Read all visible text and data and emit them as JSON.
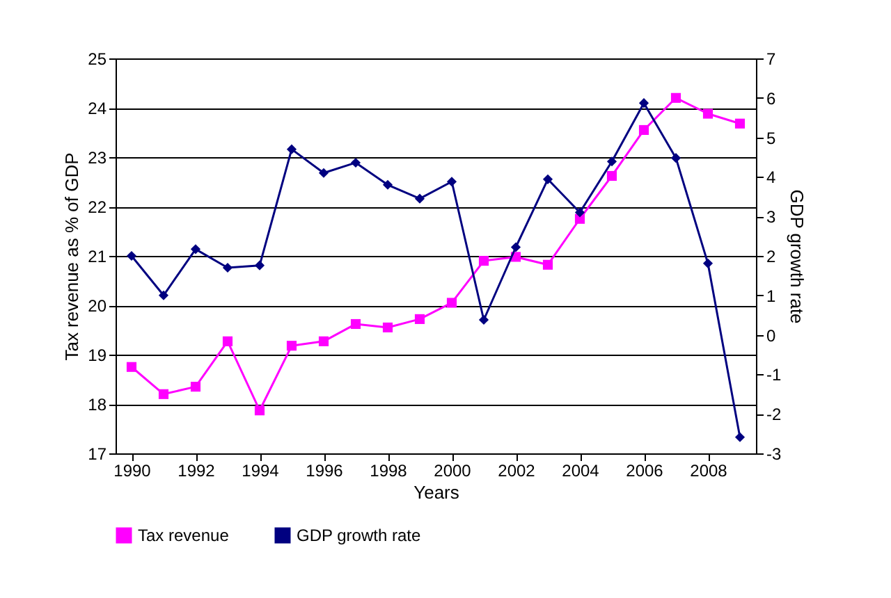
{
  "chart_data": {
    "type": "line",
    "xlabel": "Years",
    "ylabel": "Tax revenue as % of GDP",
    "y2label": "GDP growth rate",
    "x": [
      1990,
      1991,
      1992,
      1993,
      1994,
      1995,
      1996,
      1997,
      1998,
      1999,
      2000,
      2001,
      2002,
      2003,
      2004,
      2005,
      2006,
      2007,
      2008,
      2009
    ],
    "xlim": [
      1989.5,
      2009.5
    ],
    "xticks": [
      1990,
      1992,
      1994,
      1996,
      1998,
      2000,
      2002,
      2004,
      2006,
      2008
    ],
    "ylim": [
      17,
      25
    ],
    "yticks": [
      17,
      18,
      19,
      20,
      21,
      22,
      23,
      24,
      25
    ],
    "y2lim": [
      -3,
      7
    ],
    "y2ticks": [
      -3,
      -2,
      -1,
      0,
      1,
      2,
      3,
      4,
      5,
      6,
      7
    ],
    "grid": "y",
    "legend": "bottom",
    "series": [
      {
        "name": "Tax revenue",
        "color": "#ff00ff",
        "marker": "square",
        "values": [
          18.75,
          18.2,
          18.35,
          19.27,
          17.87,
          19.18,
          19.27,
          19.62,
          19.55,
          19.72,
          20.05,
          20.9,
          20.98,
          20.82,
          21.75,
          22.62,
          23.55,
          24.2,
          23.88,
          23.68
        ]
      },
      {
        "name": "GDP growth rate",
        "color": "#000080",
        "marker": "diamond",
        "axis": "y2",
        "values": [
          2.0,
          1.0,
          2.17,
          1.7,
          1.76,
          4.7,
          4.1,
          4.36,
          3.8,
          3.45,
          3.88,
          0.38,
          2.22,
          3.94,
          3.1,
          4.39,
          5.87,
          4.48,
          1.81,
          -2.59
        ]
      }
    ]
  }
}
